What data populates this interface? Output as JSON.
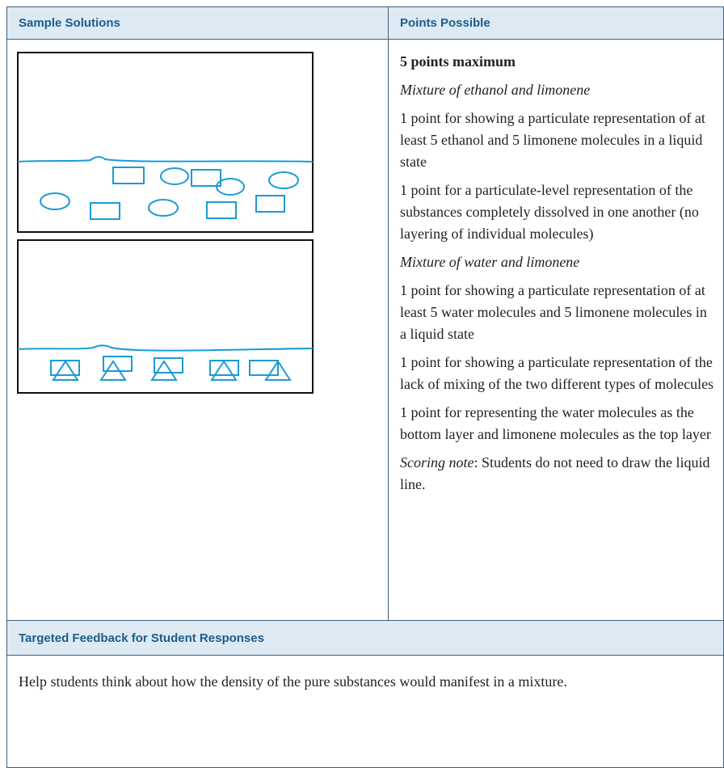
{
  "table": {
    "headers": [
      "Sample Solutions",
      "Points Possible"
    ],
    "points": [
      "5 points maximum",
      "Mixture of ethanol and limonene",
      "1 point for showing a particulate representation of at least 5 ethanol and 5 limonene molecules in a liquid state",
      "1 point for a particulate-level representation of the substances completely dissolved in one another (no layering of individual molecules)",
      "Mixture of water and limonene",
      "1 point for showing a particulate representation of at least 5 water molecules and 5 limonene molecules in a liquid state",
      "1 point for showing a particulate representation of the lack of mixing of the two different types of molecules",
      "1 point for representing the water molecules as the bottom layer and limonene molecules as the top layer"
    ],
    "scoring_note": {
      "label": "Scoring note",
      "text": ": Students do not need to draw the liquid line."
    },
    "feedback_header": "Targeted Feedback for Student Responses",
    "feedback": "Help students think about how the density of the pure substances would manifest in a mixture."
  }
}
